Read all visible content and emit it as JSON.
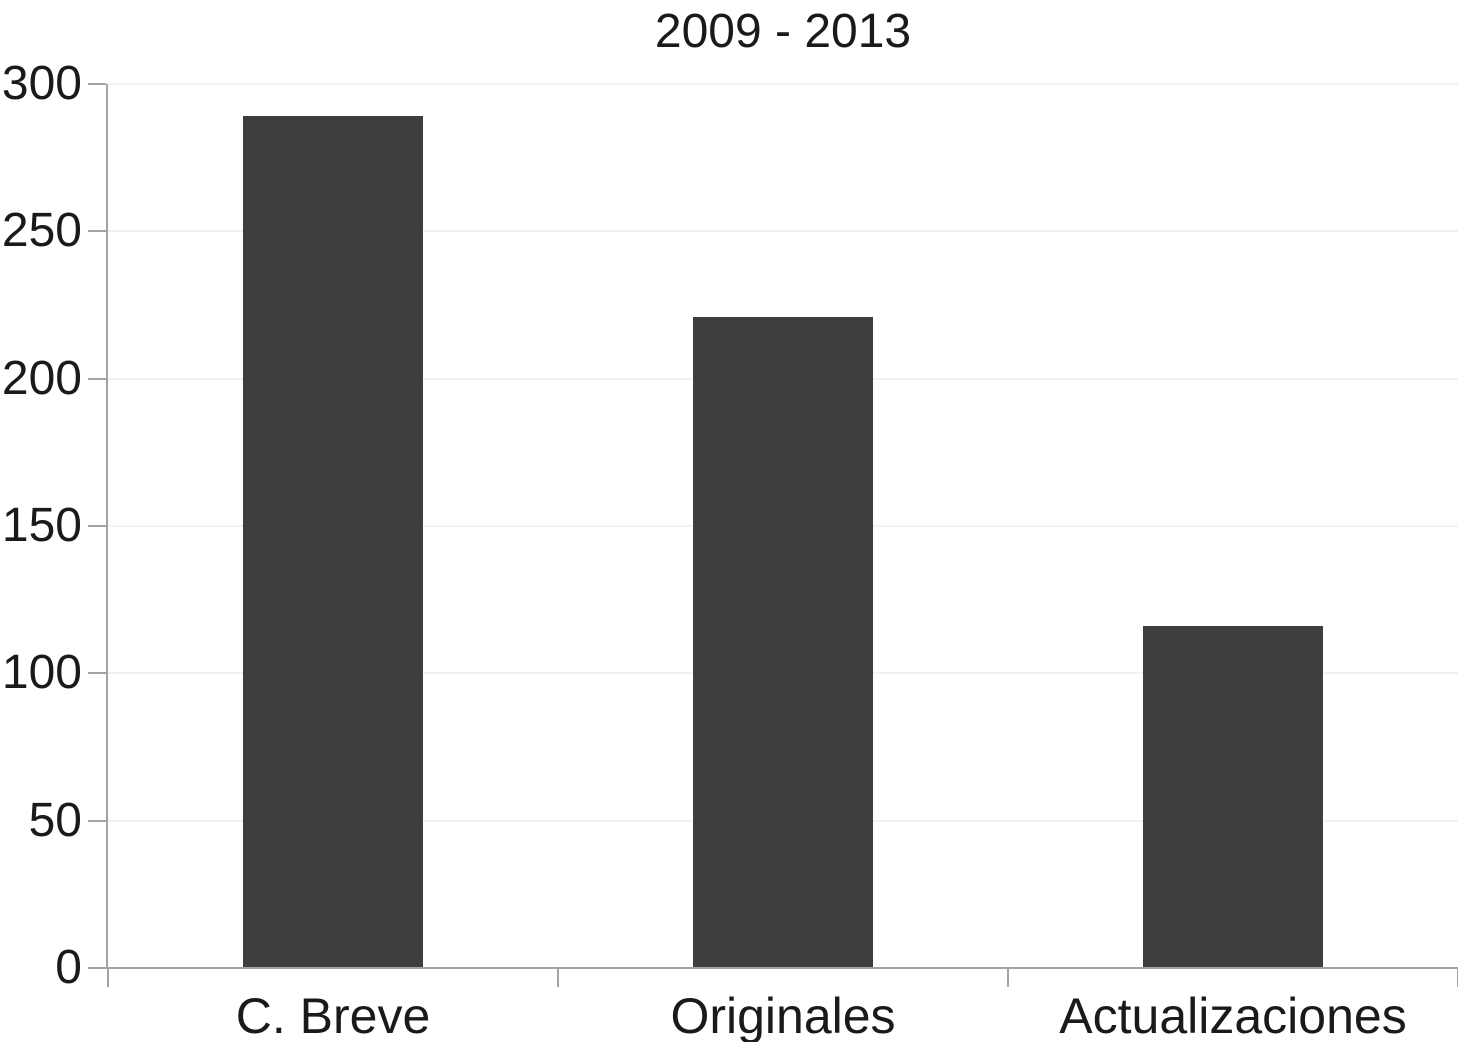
{
  "chart_data": {
    "type": "bar",
    "title": "2009 - 2013",
    "categories": [
      "C. Breve",
      "Originales",
      "Actualizaciones"
    ],
    "values": [
      289,
      221,
      116
    ],
    "xlabel": "",
    "ylabel": "",
    "ylim": [
      0,
      300
    ],
    "yticks": [
      0,
      50,
      100,
      150,
      200,
      250,
      300
    ],
    "legend_position": "none",
    "grid": "horizontal-light",
    "bar_color": "#3e3e3e",
    "axis_color": "#a3a3a3",
    "grid_color": "#f2f2f2",
    "text_color": "#1a1a1a",
    "background_color": "#ffffff"
  }
}
